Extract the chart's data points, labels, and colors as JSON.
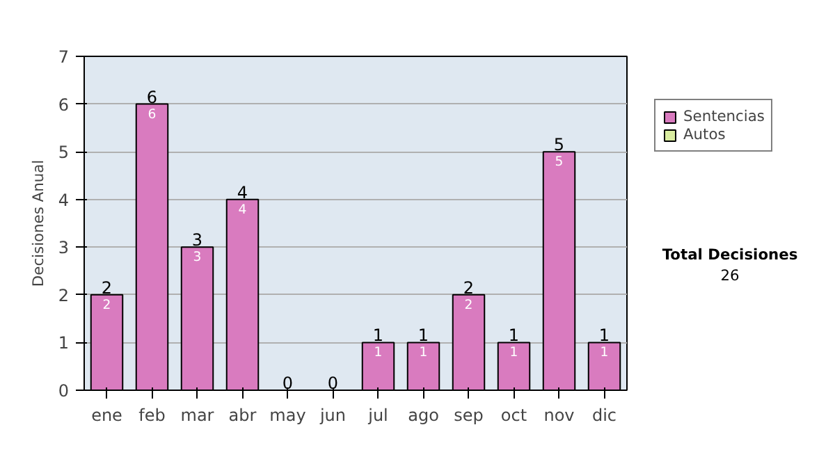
{
  "chart_data": {
    "type": "bar",
    "stacked": true,
    "ylabel": "Decisiones Anual",
    "categories": [
      "ene",
      "feb",
      "mar",
      "abr",
      "may",
      "jun",
      "jul",
      "ago",
      "sep",
      "oct",
      "nov",
      "dic"
    ],
    "series": [
      {
        "name": "Sentencias",
        "color": "#d97bbf",
        "values": [
          2,
          6,
          3,
          4,
          0,
          0,
          1,
          1,
          2,
          1,
          5,
          1
        ],
        "value_labels": [
          "2",
          "6",
          "3",
          "4",
          null,
          null,
          "1",
          "1",
          "2",
          "1",
          "5",
          "1"
        ]
      },
      {
        "name": "Autos",
        "color": "#d9eca0",
        "values": [
          0,
          0,
          0,
          0,
          0,
          0,
          0,
          0,
          0,
          0,
          0,
          0
        ]
      }
    ],
    "totals": [
      "2",
      "6",
      "3",
      "4",
      "0",
      "0",
      "1",
      "1",
      "2",
      "1",
      "5",
      "1"
    ],
    "ylim": [
      0,
      7
    ],
    "yticks": [
      0,
      1,
      2,
      3,
      4,
      5,
      6,
      7
    ],
    "grid": "y",
    "legend": "right",
    "annotations": [
      "Total Decisiones",
      "26"
    ]
  }
}
